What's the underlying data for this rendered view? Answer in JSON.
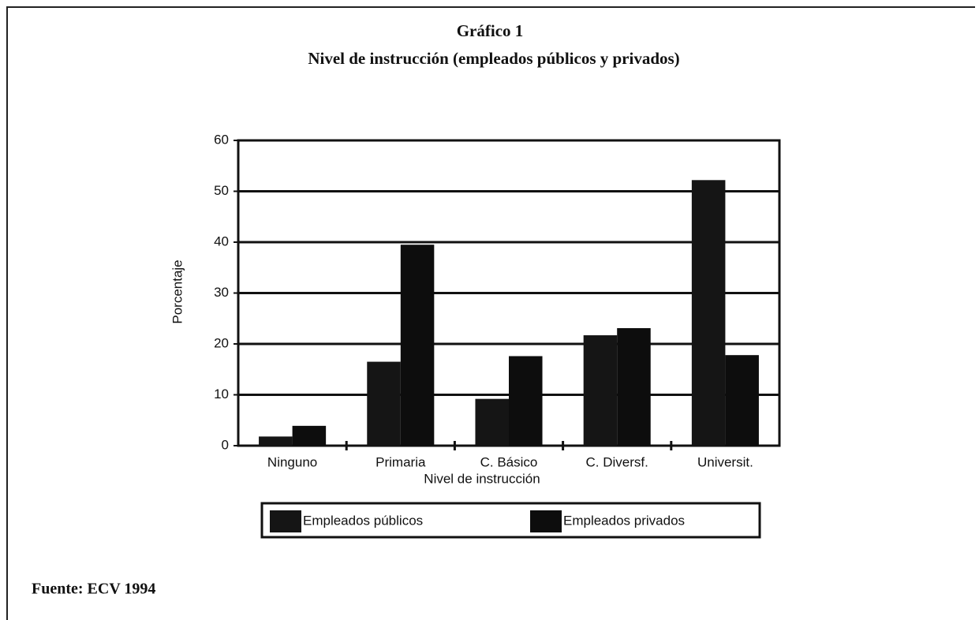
{
  "chart_data": {
    "type": "bar",
    "title": "Gráfico 1",
    "subtitle": "Nivel de instrucción (empleados públicos y privados)",
    "xlabel": "Nivel de instrucción",
    "ylabel": "Porcentaje",
    "source": "Fuente: ECV 1994",
    "categories": [
      "Ninguno",
      "Primaria",
      "C. Básico",
      "C. Diversf.",
      "Universit."
    ],
    "series": [
      {
        "name": "Empleados públicos",
        "color": "#151515",
        "values": [
          1.8,
          16.5,
          9.2,
          21.7,
          52.2
        ]
      },
      {
        "name": "Empleados privados",
        "color": "#0d0d0d",
        "values": [
          3.9,
          39.5,
          17.6,
          23.1,
          17.8
        ]
      }
    ],
    "ylim": [
      0,
      60
    ],
    "yticks": [
      0,
      10,
      20,
      30,
      40,
      50,
      60
    ],
    "grid": true
  }
}
